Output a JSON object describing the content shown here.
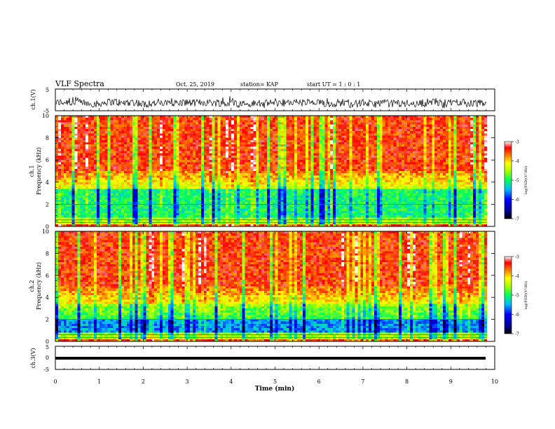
{
  "header": {
    "title": "VLF Spectra",
    "date": "Oct. 25, 2019",
    "station": "station= KAP",
    "start": "start  UT =   1 : 0  : 1"
  },
  "chart_data": [
    {
      "type": "line",
      "panel": "ch1-waveform",
      "ylabel": "ch.1(V)",
      "ylim": [
        -5,
        5
      ],
      "yticks": [
        "5",
        "-5"
      ],
      "description_values": "noisy waveform, amplitude roughly -4 to 1 V around mean -1.5 V",
      "mean": -1.5,
      "amplitude": 2.2,
      "color": "#000000"
    },
    {
      "type": "heatmap",
      "panel": "ch1-spectrogram",
      "ylabel": "ch.1\nFrequency (kHz)",
      "ylabel_lines": [
        "ch.1",
        "Frequency (kHz)"
      ],
      "ylim": [
        0,
        10
      ],
      "yticks": [
        "0",
        "2",
        "4",
        "6",
        "8",
        "10"
      ],
      "xlim": [
        0,
        10
      ],
      "bands": [
        {
          "from": 0,
          "to": 0.8,
          "level": "mixed"
        },
        {
          "from": 0.8,
          "to": 3.5,
          "level": "green-cyan"
        },
        {
          "from": 3.5,
          "to": 5.0,
          "level": "yellow-red"
        },
        {
          "from": 5.0,
          "to": 10,
          "level": "red"
        }
      ],
      "colorbar": {
        "label": "log(PSD)(V²/Hz)",
        "range": [
          -7,
          -3
        ],
        "ticks": [
          "-3",
          "-4",
          "-5",
          "-6",
          "-7"
        ]
      }
    },
    {
      "type": "heatmap",
      "panel": "ch2-spectrogram",
      "ylabel": "ch.2\nFrequency (kHz)",
      "ylabel_lines": [
        "ch.2",
        "Frequency (kHz)"
      ],
      "ylim": [
        0,
        10
      ],
      "yticks": [
        "0",
        "2",
        "4",
        "6",
        "8",
        "10"
      ],
      "xlim": [
        0,
        10
      ],
      "bands": [
        {
          "from": 0,
          "to": 0.8,
          "level": "mixed"
        },
        {
          "from": 0.8,
          "to": 2.0,
          "level": "blue-cyan"
        },
        {
          "from": 2.0,
          "to": 3.5,
          "level": "green-yellow"
        },
        {
          "from": 3.5,
          "to": 10,
          "level": "red"
        }
      ],
      "colorbar": {
        "label": "log(PSD)(V²/Hz)",
        "range": [
          -7,
          -3
        ],
        "ticks": [
          "-3",
          "-4",
          "-5",
          "-6",
          "-7"
        ]
      }
    },
    {
      "type": "line",
      "panel": "ch3-waveform",
      "ylabel": "ch.3(V)",
      "ylim": [
        -5,
        5
      ],
      "yticks": [
        "5",
        "0",
        "-5"
      ],
      "mean": -1.8,
      "color": "#000000"
    }
  ],
  "xaxis": {
    "label": "Time  (min)",
    "ticks": [
      "0",
      "1",
      "2",
      "3",
      "4",
      "5",
      "6",
      "7",
      "8",
      "9",
      "10"
    ],
    "range": [
      0,
      10
    ],
    "data_end": 9.82
  },
  "colors": {
    "scale": [
      "#000080",
      "#0000ff",
      "#00c8ff",
      "#00ff80",
      "#80ff00",
      "#ffff00",
      "#ff8000",
      "#ff0000",
      "#ffffff"
    ]
  }
}
